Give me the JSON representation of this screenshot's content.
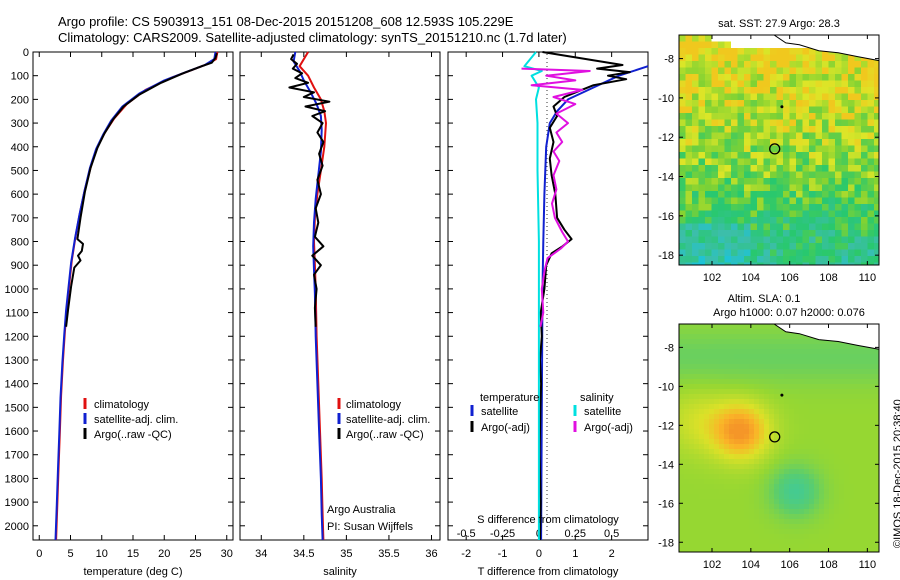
{
  "header": {
    "line1": "Argo profile: CS 5903913_151 08-Dec-2015 20151208_608 12.593S 105.229E",
    "line2": "Climatology: CARS2009. Satellite-adjusted climatology: synTS_20151210.nc (1.7d later)"
  },
  "credit": "©IMOS 18-Dec-2015 20:38:40",
  "colors": {
    "climatology": "#e01010",
    "satellite": "#1020d0",
    "argo": "#000000",
    "salinity_sat": "#00e0e0",
    "salinity_argo": "#e010e0"
  },
  "chart_data": [
    {
      "type": "line",
      "id": "temperature",
      "xlabel": "temperature (deg C)",
      "ylabel": "",
      "xlim": [
        -1,
        31
      ],
      "ylim": [
        2060,
        0
      ],
      "xticks": [
        0,
        5,
        10,
        15,
        20,
        25,
        30
      ],
      "yticks": [
        0,
        100,
        200,
        300,
        400,
        500,
        600,
        700,
        800,
        900,
        1000,
        1100,
        1200,
        1300,
        1400,
        1500,
        1600,
        1700,
        1800,
        1900,
        2000
      ],
      "legend": [
        "climatology",
        "satellite-adj. clim.",
        "Argo(..raw -QC)"
      ],
      "series": [
        {
          "name": "climatology",
          "color": "#e01010",
          "points": [
            [
              28.5,
              0
            ],
            [
              28.3,
              30
            ],
            [
              27,
              50
            ],
            [
              24.5,
              75
            ],
            [
              21,
              110
            ],
            [
              17,
              160
            ],
            [
              14,
              220
            ],
            [
              12,
              280
            ],
            [
              10.5,
              340
            ],
            [
              9.3,
              400
            ],
            [
              8.3,
              480
            ],
            [
              7.3,
              580
            ],
            [
              6.5,
              680
            ],
            [
              5.8,
              780
            ],
            [
              5.2,
              880
            ],
            [
              4.8,
              980
            ],
            [
              4.4,
              1080
            ],
            [
              4.1,
              1180
            ],
            [
              3.8,
              1300
            ],
            [
              3.5,
              1450
            ],
            [
              3.3,
              1600
            ],
            [
              3.1,
              1750
            ],
            [
              2.9,
              1900
            ],
            [
              2.7,
              2060
            ]
          ]
        },
        {
          "name": "satellite-adj. clim.",
          "color": "#1020d0",
          "points": [
            [
              28.2,
              0
            ],
            [
              28,
              30
            ],
            [
              26.5,
              55
            ],
            [
              23.5,
              85
            ],
            [
              20,
              120
            ],
            [
              16,
              175
            ],
            [
              13.3,
              230
            ],
            [
              11.5,
              290
            ],
            [
              10.2,
              350
            ],
            [
              9.1,
              410
            ],
            [
              8.1,
              490
            ],
            [
              7.2,
              590
            ],
            [
              6.4,
              690
            ],
            [
              5.7,
              790
            ],
            [
              5.1,
              890
            ],
            [
              4.7,
              990
            ],
            [
              4.3,
              1090
            ],
            [
              4,
              1190
            ],
            [
              3.7,
              1310
            ],
            [
              3.4,
              1460
            ],
            [
              3.2,
              1610
            ],
            [
              3,
              1760
            ],
            [
              2.8,
              1910
            ],
            [
              2.6,
              2060
            ]
          ]
        },
        {
          "name": "Argo(..raw -QC)",
          "color": "#000000",
          "points": [
            [
              28.4,
              5
            ],
            [
              28.2,
              25
            ],
            [
              27.6,
              45
            ],
            [
              26,
              60
            ],
            [
              23,
              90
            ],
            [
              19.5,
              130
            ],
            [
              16,
              180
            ],
            [
              13.5,
              230
            ],
            [
              11.8,
              285
            ],
            [
              10.4,
              345
            ],
            [
              9.3,
              405
            ],
            [
              8.2,
              490
            ],
            [
              7.3,
              590
            ],
            [
              6.6,
              700
            ],
            [
              6.1,
              790
            ],
            [
              7.0,
              810
            ],
            [
              6.8,
              840
            ],
            [
              6.2,
              860
            ],
            [
              6.6,
              880
            ],
            [
              5.6,
              910
            ],
            [
              5.1,
              990
            ],
            [
              4.6,
              1090
            ],
            [
              4.3,
              1160
            ]
          ]
        }
      ]
    },
    {
      "type": "line",
      "id": "salinity",
      "xlabel": "salinity",
      "ylabel": "",
      "xlim": [
        33.75,
        36.1
      ],
      "ylim": [
        2060,
        0
      ],
      "xticks": [
        34,
        34.5,
        35,
        35.5,
        36
      ],
      "legend": [
        "climatology",
        "satellite-adj. clim.",
        "Argo(..raw -QC)"
      ],
      "series": [
        {
          "name": "climatology",
          "color": "#e01010",
          "points": [
            [
              34.55,
              0
            ],
            [
              34.45,
              60
            ],
            [
              34.55,
              100
            ],
            [
              34.62,
              150
            ],
            [
              34.7,
              200
            ],
            [
              34.74,
              250
            ],
            [
              34.76,
              300
            ],
            [
              34.74,
              400
            ],
            [
              34.7,
              500
            ],
            [
              34.66,
              600
            ],
            [
              34.63,
              700
            ],
            [
              34.62,
              800
            ],
            [
              34.63,
              900
            ],
            [
              34.64,
              1000
            ],
            [
              34.65,
              1200
            ],
            [
              34.67,
              1400
            ],
            [
              34.69,
              1600
            ],
            [
              34.71,
              1800
            ],
            [
              34.72,
              1950
            ],
            [
              34.73,
              2060
            ]
          ]
        },
        {
          "name": "satellite-adj. clim.",
          "color": "#1020d0",
          "points": [
            [
              34.4,
              0
            ],
            [
              34.38,
              40
            ],
            [
              34.45,
              80
            ],
            [
              34.5,
              120
            ],
            [
              34.58,
              170
            ],
            [
              34.65,
              220
            ],
            [
              34.7,
              270
            ],
            [
              34.71,
              330
            ],
            [
              34.7,
              420
            ],
            [
              34.67,
              520
            ],
            [
              34.64,
              620
            ],
            [
              34.62,
              720
            ],
            [
              34.61,
              820
            ],
            [
              34.62,
              920
            ],
            [
              34.63,
              1020
            ],
            [
              34.64,
              1200
            ],
            [
              34.66,
              1400
            ],
            [
              34.68,
              1600
            ],
            [
              34.7,
              1800
            ],
            [
              34.71,
              1950
            ],
            [
              34.72,
              2060
            ]
          ]
        },
        {
          "name": "Argo(..raw -QC)",
          "color": "#000000",
          "points": [
            [
              34.38,
              10
            ],
            [
              34.35,
              30
            ],
            [
              34.42,
              50
            ],
            [
              34.37,
              70
            ],
            [
              34.48,
              90
            ],
            [
              34.4,
              110
            ],
            [
              34.55,
              130
            ],
            [
              34.33,
              150
            ],
            [
              34.62,
              170
            ],
            [
              34.5,
              190
            ],
            [
              34.8,
              210
            ],
            [
              34.52,
              230
            ],
            [
              34.75,
              250
            ],
            [
              34.6,
              270
            ],
            [
              34.72,
              300
            ],
            [
              34.66,
              340
            ],
            [
              34.73,
              380
            ],
            [
              34.68,
              430
            ],
            [
              34.72,
              480
            ],
            [
              34.66,
              540
            ],
            [
              34.7,
              600
            ],
            [
              34.64,
              660
            ],
            [
              34.67,
              720
            ],
            [
              34.63,
              780
            ],
            [
              34.73,
              820
            ],
            [
              34.6,
              860
            ],
            [
              34.7,
              900
            ],
            [
              34.62,
              940
            ],
            [
              34.65,
              1000
            ],
            [
              34.63,
              1080
            ],
            [
              34.64,
              1160
            ]
          ]
        }
      ]
    },
    {
      "type": "line",
      "id": "difference",
      "xlabel": "T difference from climatology",
      "xlabel2": "S difference from climatology",
      "ylabel": "",
      "xlim": [
        -2.5,
        3
      ],
      "xlim_s": [
        -0.625,
        0.75
      ],
      "ylim": [
        2060,
        0
      ],
      "xticks": [
        -2,
        -1,
        0,
        1,
        2
      ],
      "xticks_s": [
        -0.5,
        -0.25,
        0,
        0.25,
        0.5
      ],
      "xticklabels_s": [
        "-0.5",
        "-0.25",
        "0",
        "0.25",
        "0.5"
      ],
      "legend": {
        "temperature": "temperature",
        "salinity": "salinity",
        "satellite": "satellite",
        "argo": "Argo(-adj)"
      },
      "series": [
        {
          "name": "satellite",
          "quantity": "temperature",
          "color": "#1020d0",
          "points": [
            [
              3,
              60
            ],
            [
              2.2,
              100
            ],
            [
              1.5,
              150
            ],
            [
              0.8,
              200
            ],
            [
              0.5,
              250
            ],
            [
              0.3,
              300
            ],
            [
              0.2,
              400
            ],
            [
              0.15,
              600
            ],
            [
              0.12,
              800
            ],
            [
              0.1,
              1000
            ],
            [
              0.08,
              1500
            ],
            [
              0.06,
              2060
            ]
          ]
        },
        {
          "name": "Argo(-adj)",
          "quantity": "temperature",
          "color": "#000000",
          "points": [
            [
              0.1,
              0
            ],
            [
              2.3,
              55
            ],
            [
              1.6,
              70
            ],
            [
              2.5,
              85
            ],
            [
              1.9,
              100
            ],
            [
              2.4,
              115
            ],
            [
              1.5,
              140
            ],
            [
              1.1,
              165
            ],
            [
              0.7,
              190
            ],
            [
              0.4,
              230
            ],
            [
              0.5,
              270
            ],
            [
              0.3,
              320
            ],
            [
              0.4,
              380
            ],
            [
              0.3,
              450
            ],
            [
              0.35,
              520
            ],
            [
              0.45,
              600
            ],
            [
              0.5,
              700
            ],
            [
              0.7,
              750
            ],
            [
              0.9,
              790
            ],
            [
              0.65,
              820
            ],
            [
              0.35,
              850
            ],
            [
              0.2,
              900
            ],
            [
              0.15,
              1000
            ],
            [
              0.05,
              1100
            ],
            [
              0.08,
              1200
            ],
            [
              0.03,
              1300
            ],
            [
              0.06,
              1400
            ],
            [
              0.04,
              1500
            ],
            [
              0.02,
              1700
            ],
            [
              0.05,
              1900
            ],
            [
              0.03,
              2060
            ]
          ]
        },
        {
          "name": "satellite",
          "quantity": "salinity",
          "color": "#00e0e0",
          "points": [
            [
              -0.02,
              0
            ],
            [
              -0.1,
              60
            ],
            [
              0.02,
              80
            ],
            [
              -0.05,
              100
            ],
            [
              0.0,
              150
            ],
            [
              -0.02,
              200
            ],
            [
              -0.01,
              300
            ],
            [
              -0.01,
              500
            ],
            [
              0,
              800
            ],
            [
              0,
              1200
            ],
            [
              0,
              1600
            ],
            [
              0,
              2060
            ]
          ]
        },
        {
          "name": "Argo(-adj)",
          "quantity": "salinity",
          "color": "#e010e0",
          "points": [
            [
              -0.12,
              70
            ],
            [
              0.35,
              80
            ],
            [
              0.05,
              100
            ],
            [
              0.25,
              120
            ],
            [
              -0.05,
              140
            ],
            [
              0.3,
              160
            ],
            [
              0.1,
              190
            ],
            [
              0.25,
              220
            ],
            [
              0.12,
              260
            ],
            [
              0.2,
              300
            ],
            [
              0.12,
              340
            ],
            [
              0.16,
              380
            ],
            [
              0.1,
              420
            ],
            [
              0.14,
              460
            ],
            [
              0.1,
              520
            ],
            [
              0.12,
              580
            ],
            [
              0.09,
              640
            ],
            [
              0.11,
              700
            ],
            [
              0.16,
              760
            ],
            [
              0.2,
              800
            ],
            [
              0.15,
              830
            ],
            [
              0.06,
              870
            ],
            [
              0.04,
              920
            ],
            [
              0.02,
              1000
            ],
            [
              0.03,
              1100
            ],
            [
              0.01,
              1160
            ]
          ]
        }
      ]
    },
    {
      "type": "heatmap",
      "id": "sst-map",
      "title": "sat. SST: 27.9  Argo: 28.3",
      "xlim": [
        100.3,
        110.6
      ],
      "ylim": [
        -18.5,
        -6.8
      ],
      "xticks": [
        102,
        104,
        106,
        108,
        110
      ],
      "yticks": [
        -8,
        -10,
        -12,
        -14,
        -16,
        -18
      ],
      "argo_position": [
        105.229,
        -12.593
      ]
    },
    {
      "type": "heatmap",
      "id": "sla-map",
      "title_line1": "Altim. SLA: 0.1",
      "title_line2": "Argo h1000: 0.07  h2000: 0.076",
      "xlim": [
        100.3,
        110.6
      ],
      "ylim": [
        -18.5,
        -6.8
      ],
      "xticks": [
        102,
        104,
        106,
        108,
        110
      ],
      "yticks": [
        -8,
        -10,
        -12,
        -14,
        -16,
        -18
      ],
      "argo_position": [
        105.229,
        -12.593
      ]
    }
  ]
}
